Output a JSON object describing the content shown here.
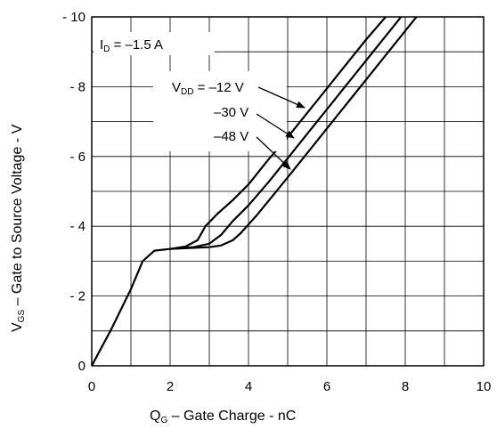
{
  "chart_data": {
    "type": "line",
    "xlabel": {
      "main": "Q",
      "sub": "G",
      "rest": " – Gate Charge    - nC"
    },
    "ylabel": {
      "main": "V",
      "sub": "GS",
      "rest": " – Gate to Source Voltage - V"
    },
    "xlim": [
      0,
      10
    ],
    "ylim": [
      0,
      -10
    ],
    "xticks": [
      0,
      2,
      4,
      6,
      8,
      10
    ],
    "xtick_labels": [
      "0",
      "2",
      "4",
      "6",
      "8",
      "10"
    ],
    "yticks": [
      0,
      -2,
      -4,
      -6,
      -8,
      -10
    ],
    "ytick_labels": [
      "0",
      "- 2",
      "- 4",
      "- 6",
      "- 8",
      "- 10"
    ],
    "grid": true,
    "annotations": {
      "id_label": {
        "main": "I",
        "sub": "D",
        "rest": " = –1.5 A"
      },
      "vdd_label": {
        "main": "V",
        "sub": "DD",
        "rest": " = –12 V"
      },
      "v30_label": "–30 V",
      "v48_label": "–48 V"
    },
    "series": [
      {
        "x": [
          0,
          0.5,
          1.0,
          1.3,
          1.6,
          2.0,
          2.4,
          2.7,
          2.9,
          3.2,
          3.6,
          4.0,
          4.5,
          5.0,
          5.5,
          6.0,
          6.5,
          7.0,
          7.5,
          7.6
        ],
        "y": [
          0,
          -1.05,
          -2.2,
          -3.0,
          -3.3,
          -3.35,
          -3.42,
          -3.6,
          -4.0,
          -4.35,
          -4.75,
          -5.2,
          -5.9,
          -6.55,
          -7.25,
          -7.95,
          -8.65,
          -9.35,
          -10.0,
          -10.15
        ]
      },
      {
        "x": [
          2.0,
          2.6,
          3.0,
          3.3,
          3.6,
          4.0,
          4.5,
          5.0,
          5.5,
          6.0,
          6.5,
          7.0,
          7.5,
          8.0
        ],
        "y": [
          -3.35,
          -3.4,
          -3.5,
          -3.75,
          -4.15,
          -4.6,
          -5.25,
          -5.95,
          -6.65,
          -7.35,
          -8.05,
          -8.75,
          -9.45,
          -10.15
        ]
      },
      {
        "x": [
          2.0,
          3.0,
          3.3,
          3.6,
          3.8,
          4.2,
          4.6,
          5.0,
          5.5,
          6.0,
          6.5,
          7.0,
          7.5,
          8.0,
          8.5
        ],
        "y": [
          -3.35,
          -3.4,
          -3.45,
          -3.6,
          -3.8,
          -4.3,
          -4.85,
          -5.4,
          -6.1,
          -6.8,
          -7.5,
          -8.2,
          -8.9,
          -9.6,
          -10.3
        ]
      }
    ]
  }
}
